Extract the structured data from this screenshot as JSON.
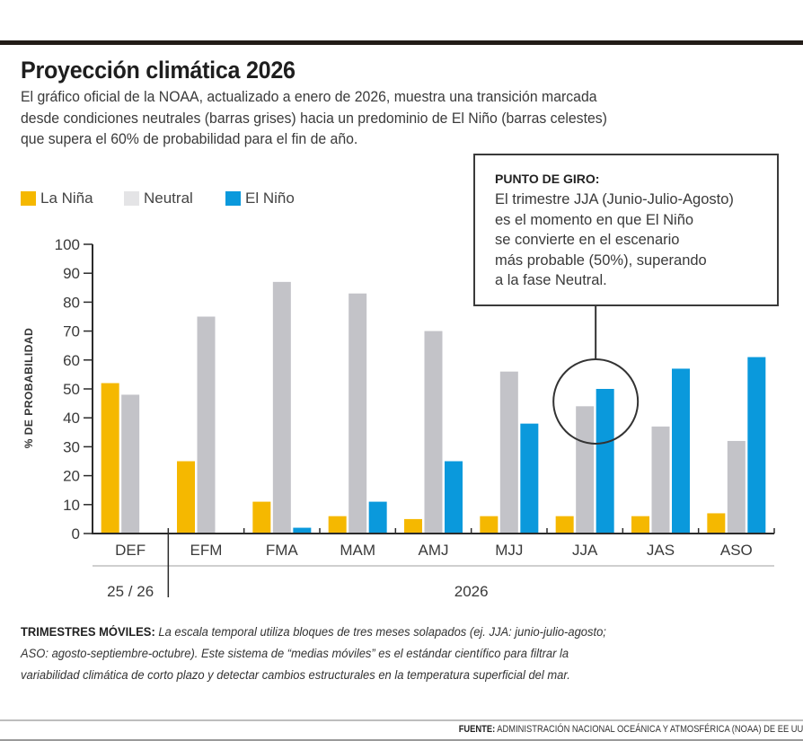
{
  "header": {
    "title": "Proyección climática 2026",
    "subtitle_lines": [
      "El gráfico oficial de la NOAA, actualizado a enero de 2026, muestra una transición marcada",
      "desde condiciones neutrales (barras grises) hacia un predominio de El Niño (barras celestes)",
      "que supera el 60% de probabilidad para el fin de año."
    ]
  },
  "legend": [
    {
      "label": "La Niña",
      "color": "#f5b800"
    },
    {
      "label": "Neutral",
      "color": "#e4e4e6"
    },
    {
      "label": "El Niño",
      "color": "#0a99dc"
    }
  ],
  "callout": {
    "heading": "PUNTO DE GIRO:",
    "lines": [
      "El trimestre JJA (Junio-Julio-Agosto)",
      "es el momento en que El Niño",
      "se convierte en el escenario",
      "más probable (50%), superando",
      "a la fase Neutral."
    ],
    "highlight_category": "JJA"
  },
  "chart_data": {
    "type": "bar",
    "title": "Proyección climática 2026",
    "xlabel": "",
    "ylabel": "% DE PROBABILIDAD",
    "ylim": [
      0,
      100
    ],
    "yticks": [
      0,
      10,
      20,
      30,
      40,
      50,
      60,
      70,
      80,
      90,
      100
    ],
    "grid": false,
    "legend_position": "top-left",
    "categories": [
      "DEF",
      "EFM",
      "FMA",
      "MAM",
      "AMJ",
      "MJJ",
      "JJA",
      "JAS",
      "ASO"
    ],
    "series": [
      {
        "name": "La Niña",
        "color": "#f5b800",
        "values": [
          52,
          25,
          11,
          6,
          5,
          6,
          6,
          6,
          7
        ]
      },
      {
        "name": "Neutral",
        "color": "#c3c3c8",
        "values": [
          48,
          75,
          87,
          83,
          70,
          56,
          44,
          37,
          32
        ]
      },
      {
        "name": "El Niño",
        "color": "#0a99dc",
        "values": [
          0,
          0,
          2,
          11,
          25,
          38,
          50,
          57,
          61
        ]
      }
    ],
    "period_groups": [
      {
        "label": "25 / 26",
        "categories": [
          "DEF"
        ]
      },
      {
        "label": "2026",
        "categories": [
          "EFM",
          "FMA",
          "MAM",
          "AMJ",
          "MJJ",
          "JJA",
          "JAS",
          "ASO"
        ]
      }
    ]
  },
  "footnote": {
    "lead": "TRIMESTRES MÓVILES:",
    "lines": [
      " La escala temporal utiliza bloques de tres meses solapados (ej. JJA: junio-julio-agosto;",
      "ASO: agosto-septiembre-octubre). Este sistema de “medias móviles” es el estándar científico para filtrar la",
      "variabilidad climática de corto plazo y detectar cambios estructurales en la temperatura superficial del mar."
    ]
  },
  "source": {
    "label": "FUENTE:",
    "text": " ADMINISTRACIÓN NACIONAL OCEÁNICA Y ATMOSFÉRICA (NOAA) DE EE UU"
  }
}
